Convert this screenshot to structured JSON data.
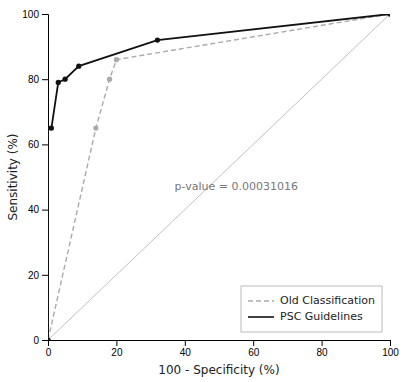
{
  "chart_data": {
    "type": "line",
    "xlabel": "100 - Specificity (%)",
    "ylabel": "Sensitivity (%)",
    "xlim": [
      0,
      100
    ],
    "ylim": [
      0,
      100
    ],
    "xticks": [
      0,
      20,
      40,
      60,
      80,
      100
    ],
    "yticks": [
      0,
      20,
      40,
      60,
      80,
      100
    ],
    "grid": false,
    "legend": "lower right",
    "series": [
      {
        "x": [
          0,
          100
        ],
        "values": [
          0,
          100
        ],
        "color": "#c0c0c0",
        "line_style": "solid"
      },
      {
        "name": "Old Classification",
        "x": [
          0,
          14,
          18,
          20,
          100
        ],
        "values": [
          0,
          65,
          80,
          86,
          100
        ],
        "color": "#aaaaaa",
        "line_style": "dashed",
        "marker": "circle"
      },
      {
        "name": "PSC Guidelines",
        "x": [
          0,
          0,
          1,
          3,
          5,
          9,
          32,
          100
        ],
        "values": [
          0,
          65,
          65,
          79,
          80,
          84,
          92,
          100
        ],
        "color": "#111111",
        "line_style": "solid",
        "marker": "circle"
      }
    ],
    "annotations": [
      {
        "text": "p-value = 0.00031016",
        "x": 37,
        "y": 47
      }
    ]
  }
}
